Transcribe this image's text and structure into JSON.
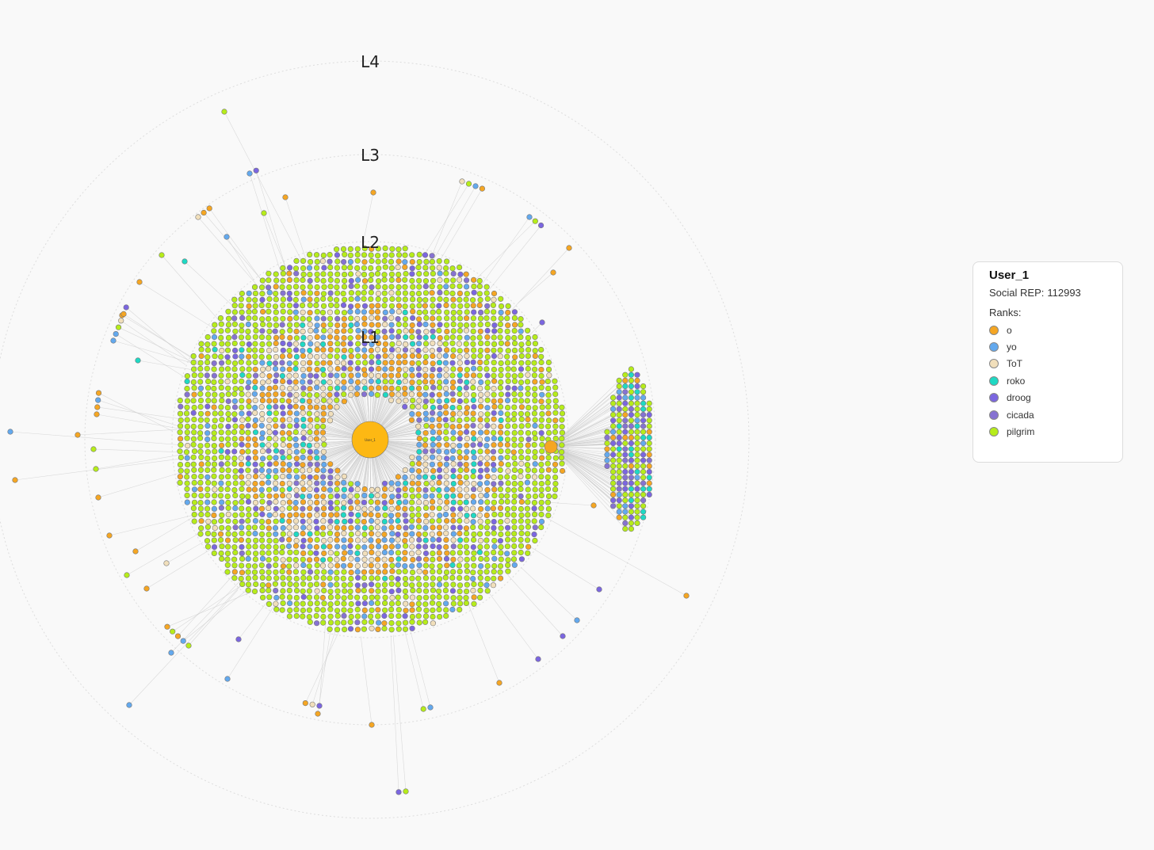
{
  "levels": [
    "L1",
    "L2",
    "L3",
    "L4"
  ],
  "center_node": {
    "label": "User_1",
    "rank": "o"
  },
  "legend": {
    "title": "User_1",
    "rep_label": "Social REP:",
    "rep_value": "112993",
    "ranks_label": "Ranks:",
    "ranks": [
      {
        "name": "o",
        "color": "#f5a623"
      },
      {
        "name": "yo",
        "color": "#63a9ee"
      },
      {
        "name": "ToT",
        "color": "#f1dfbb"
      },
      {
        "name": "roko",
        "color": "#1ed9c4"
      },
      {
        "name": "droog",
        "color": "#7b66e0"
      },
      {
        "name": "cicada",
        "color": "#8672d2"
      },
      {
        "name": "pilgrim",
        "color": "#b6ec1a"
      }
    ]
  }
}
